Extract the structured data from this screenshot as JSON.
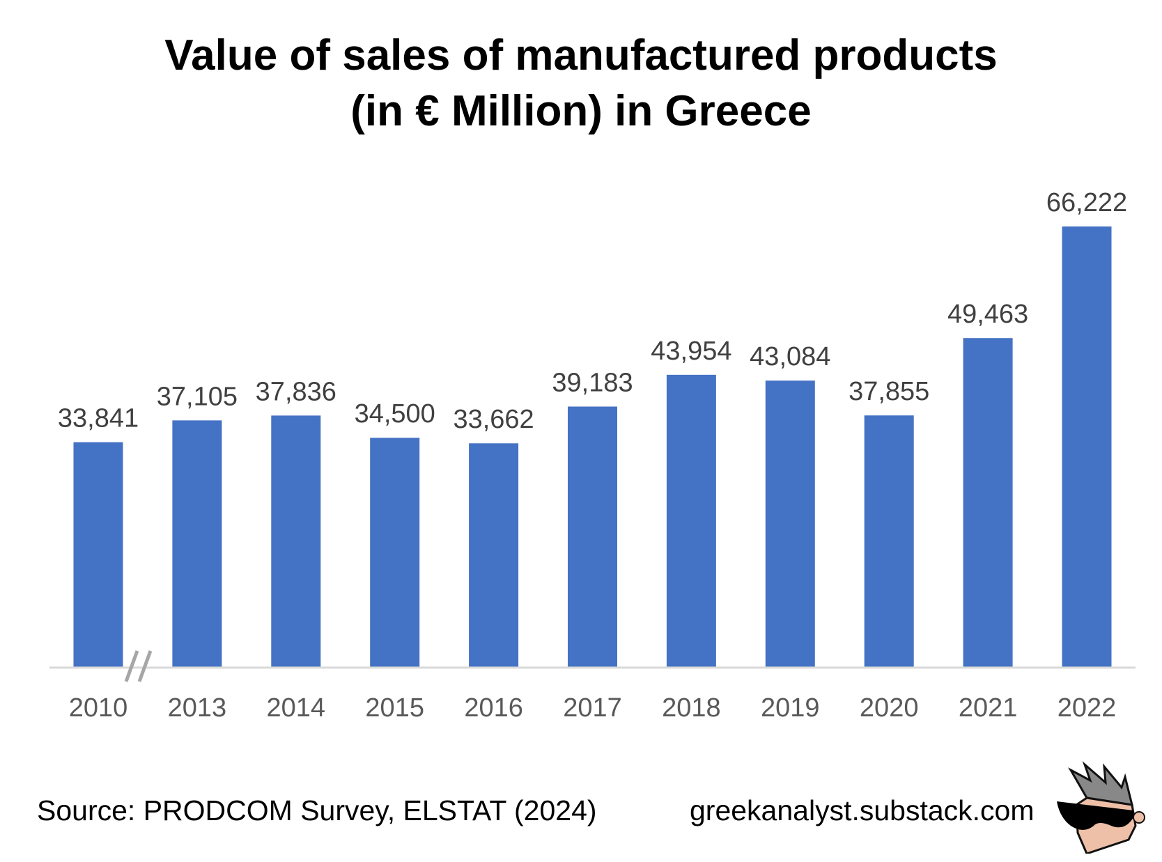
{
  "chart_data": {
    "type": "bar",
    "title_line1": "Value of sales of manufactured products",
    "title_line2": "(in € Million) in Greece",
    "xlabel": "",
    "ylabel": "",
    "categories": [
      "2010",
      "2013",
      "2014",
      "2015",
      "2016",
      "2017",
      "2018",
      "2019",
      "2020",
      "2021",
      "2022"
    ],
    "values": [
      33841,
      37105,
      37836,
      34500,
      33662,
      39183,
      43954,
      43084,
      37855,
      49463,
      66222
    ],
    "data_labels": [
      "33,841",
      "37,105",
      "37,836",
      "34,500",
      "33,662",
      "39,183",
      "43,954",
      "43,084",
      "37,855",
      "49,463",
      "66,222"
    ],
    "ylim": [
      0,
      66222
    ],
    "grid": false,
    "legend": "none",
    "axis_break_after": "2010",
    "bar_color": "#4472C4",
    "axis_color": "#D9D9D9",
    "label_color": "#404040"
  },
  "footer": {
    "source": "Source: PRODCOM Survey, ELSTAT (2024)",
    "website": "greekanalyst.substack.com"
  },
  "logo": {
    "icon": "cartoon-head-sunglasses-icon"
  }
}
